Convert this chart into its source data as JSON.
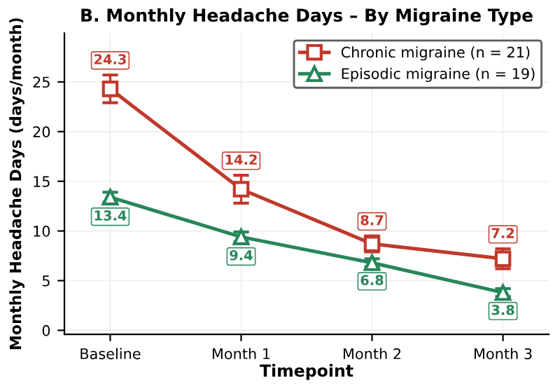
{
  "chart_data": {
    "type": "line",
    "title": "B. Monthly Headache Days – By Migraine Type",
    "xlabel": "Timepoint",
    "ylabel": "Monthly Headache Days (days/month)",
    "categories": [
      "Baseline",
      "Month 1",
      "Month 2",
      "Month 3"
    ],
    "series": [
      {
        "name": "Chronic migraine (n = 21)",
        "color": "#c0392b",
        "marker": "square",
        "values": [
          24.3,
          14.2,
          8.7,
          7.2
        ],
        "errors": [
          1.4,
          1.4,
          0.8,
          1.0
        ]
      },
      {
        "name": "Episodic migraine (n = 19)",
        "color": "#27865a",
        "marker": "triangle",
        "values": [
          13.4,
          9.4,
          6.8,
          3.8
        ],
        "errors": [
          0.5,
          0.5,
          0.4,
          0.4
        ]
      }
    ],
    "ylim": [
      -0.4,
      29.9
    ],
    "yticks": [
      0,
      5,
      10,
      15,
      20,
      25
    ],
    "grid": true,
    "legend": "top right",
    "data_labels": true,
    "line_style": "solid"
  }
}
